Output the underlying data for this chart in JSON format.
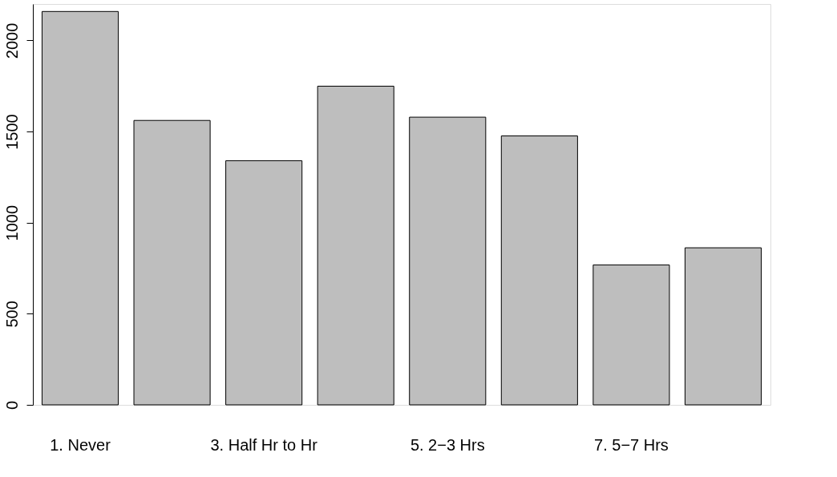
{
  "chart_data": {
    "type": "bar",
    "categories": [
      "1. Never",
      null,
      "3. Half Hr to Hr",
      null,
      "5. 2−3 Hrs",
      null,
      "7. 5−7 Hrs",
      null
    ],
    "values": [
      2159,
      1561,
      1340,
      1749,
      1579,
      1476,
      768,
      862
    ],
    "color": "#bebebe",
    "ylim": [
      0,
      2200
    ],
    "yticks": [
      0,
      500,
      1000,
      1500,
      2000
    ],
    "grid": false
  }
}
